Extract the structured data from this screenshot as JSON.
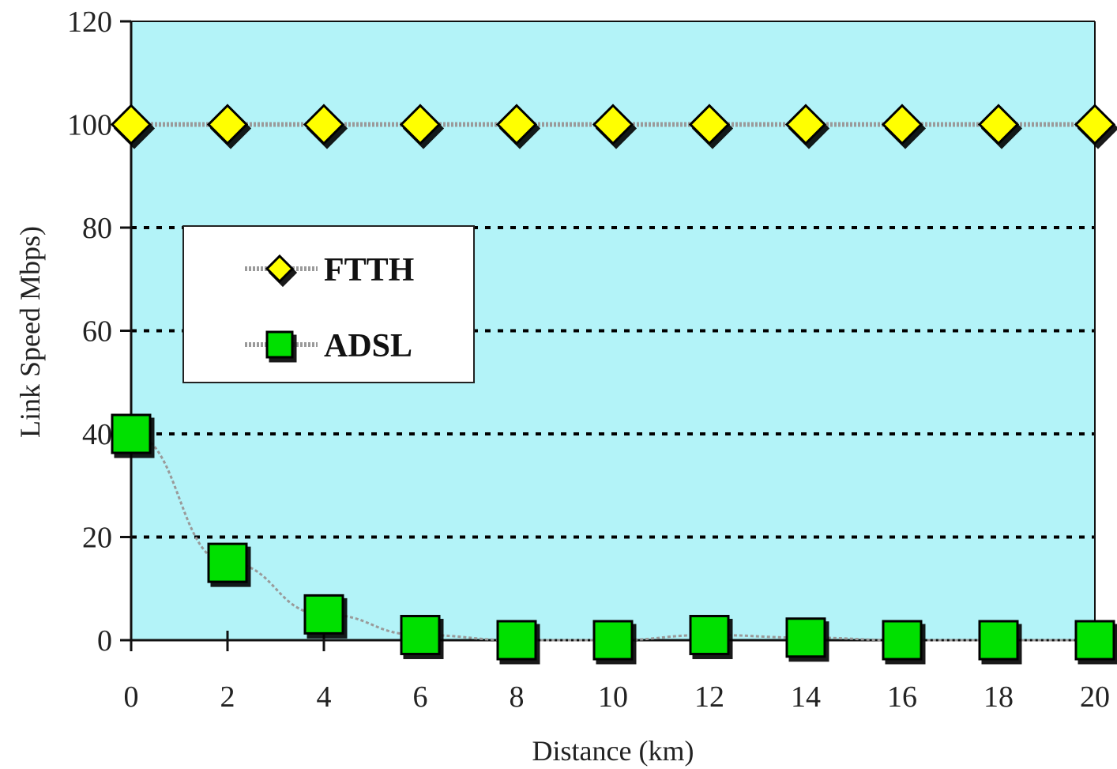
{
  "chart_data": {
    "type": "scatter",
    "title": "",
    "xlabel": "Distance (km)",
    "ylabel": "Link Speed Mbps)",
    "xlim": [
      0,
      20
    ],
    "ylim": [
      0,
      120
    ],
    "x_ticks": [
      0,
      2,
      4,
      6,
      8,
      10,
      12,
      14,
      16,
      18,
      20
    ],
    "y_ticks": [
      0,
      20,
      40,
      60,
      80,
      100,
      120
    ],
    "grid": "horizontal dotted at 20, 40, 60, 80",
    "legend": "upper-left",
    "background_color": "#b3f3f8",
    "series": [
      {
        "name": "FTTH",
        "marker": "diamond",
        "color": "#ffff00",
        "x": [
          0,
          2,
          4,
          6,
          8,
          10,
          12,
          14,
          16,
          18,
          20
        ],
        "values": [
          100,
          100,
          100,
          100,
          100,
          100,
          100,
          100,
          100,
          100,
          100
        ]
      },
      {
        "name": "ADSL",
        "marker": "square",
        "color": "#00e000",
        "x": [
          0,
          2,
          4,
          6,
          8,
          10,
          12,
          14,
          16,
          18,
          20
        ],
        "values": [
          40,
          15,
          5,
          1,
          0,
          0,
          1,
          0.5,
          0,
          0,
          0
        ]
      }
    ]
  }
}
